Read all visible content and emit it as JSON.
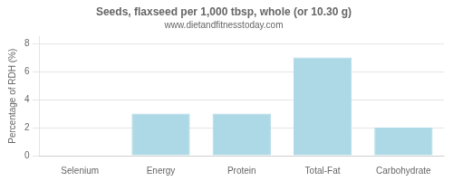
{
  "chart_data": {
    "type": "bar",
    "title": "Seeds, flaxseed per 1,000 tbsp, whole (or 10.30 g)",
    "subtitle": "www.dietandfitnesstoday.com",
    "categories": [
      "Selenium",
      "Energy",
      "Protein",
      "Total-Fat",
      "Carbohydrate"
    ],
    "values": [
      0.0,
      3.0,
      3.0,
      7.0,
      2.0
    ],
    "color": "#add8e6",
    "ylabel": "Percentage of RDH (%)",
    "ylim": [
      0,
      8.5
    ],
    "yticks": [
      0,
      2,
      4,
      6,
      8
    ],
    "grid": true
  }
}
